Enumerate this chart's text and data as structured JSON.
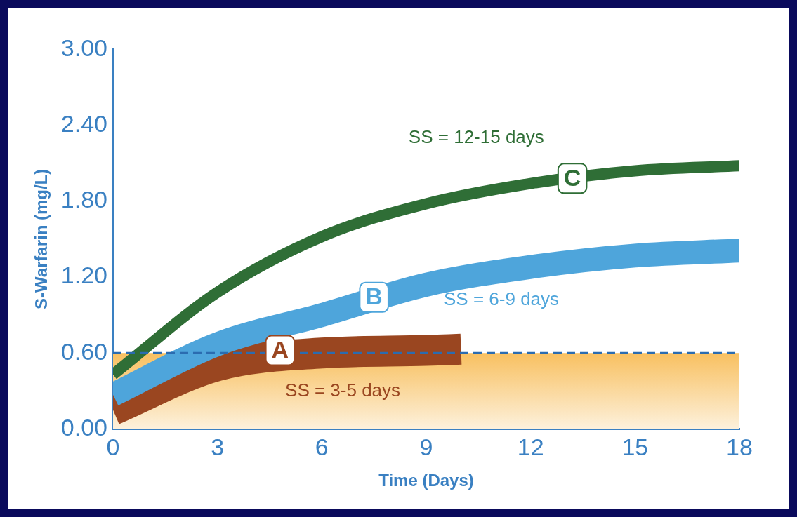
{
  "chart_data": {
    "type": "line",
    "xlabel": "Time (Days)",
    "ylabel": "S-Warfarin (mg/L)",
    "xlim": [
      0,
      18
    ],
    "xticks": [
      0,
      3,
      6,
      9,
      12,
      15,
      18
    ],
    "ylim": [
      0,
      3
    ],
    "yticks": [
      {
        "value": 0,
        "label": "0.00"
      },
      {
        "value": 0.6,
        "label": "0.60"
      },
      {
        "value": 1.2,
        "label": "1.20"
      },
      {
        "value": 1.8,
        "label": "1.80"
      },
      {
        "value": 2.4,
        "label": "2.40"
      },
      {
        "value": 3,
        "label": "3.00"
      }
    ],
    "grid": false,
    "legend": false,
    "series": [
      {
        "color": "#2f6e36",
        "x": [
          0,
          3,
          6,
          9,
          12,
          15,
          18
        ],
        "values": [
          0.43,
          1.08,
          1.52,
          1.78,
          1.94,
          2.04,
          2.08
        ]
      },
      {
        "color": "#4ea5db",
        "x": [
          0,
          3,
          6,
          9,
          12,
          15,
          18
        ],
        "values": [
          0.27,
          0.67,
          0.9,
          1.14,
          1.28,
          1.37,
          1.41
        ]
      },
      {
        "color": "#9a4620",
        "x": [
          0,
          3,
          6,
          9,
          10
        ],
        "values": [
          0.15,
          0.5,
          0.6,
          0.62,
          0.63
        ]
      }
    ],
    "ref_lines": [
      {
        "axis": "y",
        "value": 0.6,
        "color": "#2b6cb0",
        "line_style": "dashed"
      }
    ],
    "bands": [
      {
        "axis": "y",
        "from": 0,
        "to": 0.6,
        "color": "#f8c060"
      }
    ],
    "annotations": [
      "SS = 12-15 days",
      "SS = 6-9 days",
      "SS = 3-5 days",
      {
        "text": "C",
        "x": 13.2,
        "y": 1.98
      },
      {
        "text": "B",
        "x": 7.5,
        "y": 1.04
      },
      {
        "text": "A",
        "x": 4.8,
        "y": 0.62
      }
    ]
  }
}
